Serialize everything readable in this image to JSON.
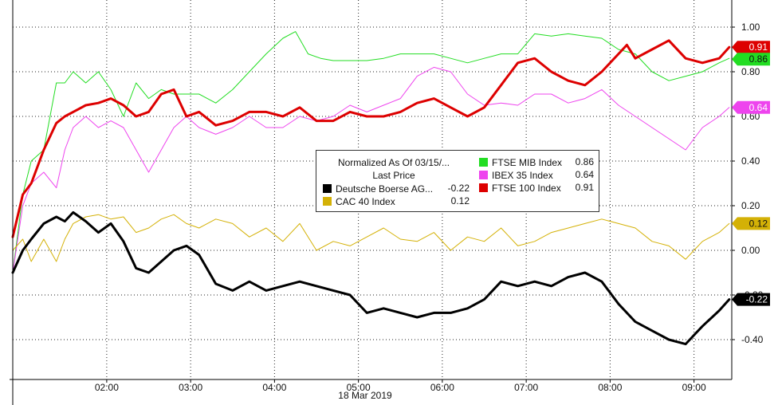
{
  "chart_data": {
    "type": "line",
    "title": "",
    "xlabel": "18 Mar 2019",
    "ylabel": "",
    "x_ticks": [
      "02:00",
      "03:00",
      "04:00",
      "05:00",
      "06:00",
      "07:00",
      "08:00",
      "09:00"
    ],
    "y_ticks": [
      "1.00",
      "0.80",
      "0.60",
      "0.40",
      "0.20",
      "0.00",
      "-0.20",
      "-0.40"
    ],
    "ylim": [
      -0.52,
      1.1
    ],
    "xlim": [
      0.88,
      9.45
    ],
    "grid": true,
    "legend": {
      "placement": "center",
      "header": [
        "Normalized As Of 03/15/...",
        "Last Price"
      ],
      "items": [
        {
          "name": "Deutsche Boerse AG...",
          "value": "-0.22",
          "color": "#000000"
        },
        {
          "name": "CAC 40 Index",
          "value": "0.12",
          "color": "#d4b106"
        },
        {
          "name": "FTSE MIB Index",
          "value": "0.86",
          "color": "#22dd22"
        },
        {
          "name": "IBEX 35 Index",
          "value": "0.64",
          "color": "#ee44ee"
        },
        {
          "name": "FTSE 100 Index",
          "value": "0.91",
          "color": "#dd0000"
        }
      ]
    },
    "last_value_labels": [
      {
        "text": "0.91",
        "value": 0.91,
        "color": "#dd0000",
        "text_color": "#ffffff"
      },
      {
        "text": "0.86",
        "value": 0.86,
        "color": "#22dd22",
        "text_color": "#111111"
      },
      {
        "text": "0.64",
        "value": 0.64,
        "color": "#ee44ee",
        "text_color": "#ffffff"
      },
      {
        "text": "0.12",
        "value": 0.12,
        "color": "#d4b106",
        "text_color": "#111111"
      },
      {
        "text": "-0.22",
        "value": -0.22,
        "color": "#000000",
        "text_color": "#ffffff"
      }
    ],
    "series": [
      {
        "name": "FTSE MIB Index",
        "color": "#22dd22",
        "width": 1,
        "x": [
          0.88,
          1.0,
          1.1,
          1.25,
          1.4,
          1.5,
          1.6,
          1.75,
          1.9,
          2.05,
          2.2,
          2.35,
          2.5,
          2.65,
          2.8,
          2.95,
          3.1,
          3.3,
          3.5,
          3.7,
          3.9,
          4.1,
          4.25,
          4.4,
          4.55,
          4.7,
          4.9,
          5.1,
          5.3,
          5.5,
          5.7,
          5.9,
          6.1,
          6.3,
          6.5,
          6.7,
          6.9,
          7.1,
          7.3,
          7.5,
          7.7,
          7.9,
          8.1,
          8.3,
          8.5,
          8.7,
          8.9,
          9.1,
          9.3,
          9.42
        ],
        "values": [
          -0.1,
          0.25,
          0.4,
          0.45,
          0.75,
          0.75,
          0.8,
          0.75,
          0.8,
          0.72,
          0.6,
          0.75,
          0.68,
          0.72,
          0.7,
          0.7,
          0.7,
          0.66,
          0.72,
          0.8,
          0.88,
          0.95,
          0.98,
          0.88,
          0.86,
          0.85,
          0.85,
          0.85,
          0.86,
          0.88,
          0.88,
          0.88,
          0.86,
          0.84,
          0.86,
          0.88,
          0.88,
          0.97,
          0.96,
          0.97,
          0.96,
          0.95,
          0.9,
          0.88,
          0.8,
          0.76,
          0.78,
          0.8,
          0.84,
          0.86
        ]
      },
      {
        "name": "IBEX 35 Index",
        "color": "#ee44ee",
        "width": 1,
        "x": [
          0.88,
          1.0,
          1.1,
          1.25,
          1.4,
          1.5,
          1.6,
          1.75,
          1.9,
          2.05,
          2.2,
          2.35,
          2.5,
          2.65,
          2.8,
          2.95,
          3.1,
          3.3,
          3.5,
          3.7,
          3.9,
          4.1,
          4.3,
          4.5,
          4.7,
          4.9,
          5.1,
          5.3,
          5.5,
          5.7,
          5.9,
          6.1,
          6.3,
          6.5,
          6.7,
          6.9,
          7.1,
          7.3,
          7.5,
          7.7,
          7.9,
          8.1,
          8.3,
          8.5,
          8.7,
          8.9,
          9.0,
          9.1,
          9.3,
          9.42
        ],
        "values": [
          -0.1,
          0.2,
          0.3,
          0.35,
          0.28,
          0.45,
          0.55,
          0.6,
          0.55,
          0.58,
          0.55,
          0.45,
          0.35,
          0.45,
          0.55,
          0.6,
          0.55,
          0.52,
          0.55,
          0.6,
          0.55,
          0.55,
          0.6,
          0.58,
          0.6,
          0.65,
          0.62,
          0.65,
          0.68,
          0.78,
          0.82,
          0.8,
          0.7,
          0.65,
          0.66,
          0.65,
          0.7,
          0.7,
          0.66,
          0.68,
          0.72,
          0.65,
          0.6,
          0.55,
          0.5,
          0.45,
          0.5,
          0.55,
          0.6,
          0.64
        ]
      },
      {
        "name": "CAC 40 Index",
        "color": "#d4b106",
        "width": 1,
        "x": [
          0.88,
          1.0,
          1.1,
          1.25,
          1.4,
          1.5,
          1.6,
          1.75,
          1.9,
          2.05,
          2.2,
          2.35,
          2.5,
          2.65,
          2.8,
          2.95,
          3.1,
          3.3,
          3.5,
          3.7,
          3.9,
          4.1,
          4.3,
          4.5,
          4.7,
          4.9,
          5.1,
          5.3,
          5.5,
          5.7,
          5.9,
          6.1,
          6.3,
          6.5,
          6.7,
          6.9,
          7.1,
          7.3,
          7.5,
          7.7,
          7.9,
          8.1,
          8.3,
          8.5,
          8.7,
          8.9,
          9.0,
          9.1,
          9.3,
          9.42
        ],
        "values": [
          0.0,
          0.05,
          -0.05,
          0.05,
          -0.05,
          0.05,
          0.12,
          0.15,
          0.16,
          0.14,
          0.15,
          0.08,
          0.1,
          0.14,
          0.16,
          0.12,
          0.1,
          0.14,
          0.12,
          0.06,
          0.1,
          0.04,
          0.12,
          0.0,
          0.04,
          0.02,
          0.06,
          0.1,
          0.05,
          0.04,
          0.08,
          0.0,
          0.06,
          0.04,
          0.1,
          0.02,
          0.04,
          0.08,
          0.1,
          0.12,
          0.14,
          0.12,
          0.1,
          0.04,
          0.02,
          -0.04,
          0.0,
          0.04,
          0.08,
          0.12
        ]
      },
      {
        "name": "FTSE 100 Index",
        "color": "#dd0000",
        "width": 3,
        "x": [
          0.88,
          1.0,
          1.1,
          1.25,
          1.4,
          1.5,
          1.6,
          1.75,
          1.9,
          2.05,
          2.2,
          2.35,
          2.5,
          2.65,
          2.8,
          2.95,
          3.1,
          3.3,
          3.5,
          3.7,
          3.9,
          4.1,
          4.3,
          4.5,
          4.7,
          4.9,
          5.1,
          5.3,
          5.5,
          5.7,
          5.9,
          6.1,
          6.3,
          6.5,
          6.7,
          6.9,
          7.1,
          7.3,
          7.5,
          7.7,
          7.9,
          8.1,
          8.2,
          8.3,
          8.5,
          8.7,
          8.9,
          9.1,
          9.3,
          9.42
        ],
        "values": [
          0.06,
          0.25,
          0.3,
          0.45,
          0.57,
          0.6,
          0.62,
          0.65,
          0.66,
          0.68,
          0.65,
          0.6,
          0.62,
          0.7,
          0.72,
          0.6,
          0.62,
          0.56,
          0.58,
          0.62,
          0.62,
          0.6,
          0.64,
          0.58,
          0.58,
          0.62,
          0.6,
          0.6,
          0.62,
          0.66,
          0.68,
          0.64,
          0.6,
          0.64,
          0.74,
          0.84,
          0.86,
          0.8,
          0.76,
          0.74,
          0.8,
          0.88,
          0.92,
          0.86,
          0.9,
          0.94,
          0.86,
          0.84,
          0.86,
          0.91
        ]
      },
      {
        "name": "Deutsche Boerse AG...",
        "color": "#000000",
        "width": 3,
        "x": [
          0.88,
          1.0,
          1.1,
          1.25,
          1.4,
          1.5,
          1.6,
          1.75,
          1.9,
          2.05,
          2.2,
          2.35,
          2.5,
          2.65,
          2.8,
          2.95,
          3.1,
          3.3,
          3.5,
          3.7,
          3.9,
          4.1,
          4.3,
          4.5,
          4.7,
          4.9,
          5.1,
          5.3,
          5.5,
          5.7,
          5.9,
          6.1,
          6.3,
          6.5,
          6.7,
          6.9,
          7.1,
          7.3,
          7.5,
          7.7,
          7.9,
          8.1,
          8.3,
          8.5,
          8.7,
          8.9,
          9.0,
          9.1,
          9.3,
          9.42
        ],
        "values": [
          -0.1,
          0.0,
          0.05,
          0.12,
          0.15,
          0.13,
          0.17,
          0.13,
          0.08,
          0.12,
          0.04,
          -0.08,
          -0.1,
          -0.05,
          0.0,
          0.02,
          -0.02,
          -0.15,
          -0.18,
          -0.14,
          -0.18,
          -0.16,
          -0.14,
          -0.16,
          -0.18,
          -0.2,
          -0.28,
          -0.26,
          -0.28,
          -0.3,
          -0.28,
          -0.28,
          -0.26,
          -0.22,
          -0.14,
          -0.16,
          -0.14,
          -0.16,
          -0.12,
          -0.1,
          -0.14,
          -0.24,
          -0.32,
          -0.36,
          -0.4,
          -0.42,
          -0.38,
          -0.34,
          -0.27,
          -0.22
        ]
      }
    ]
  }
}
